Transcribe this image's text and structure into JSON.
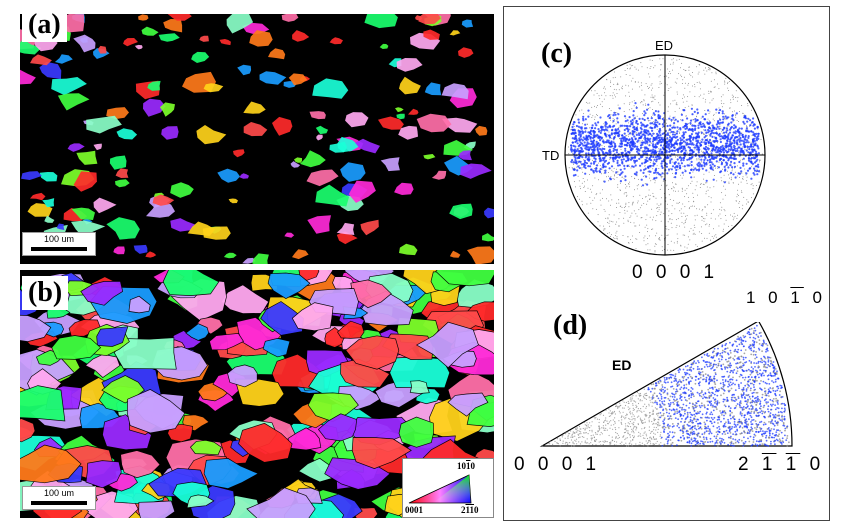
{
  "panels": {
    "a": {
      "letter": "(a)",
      "scalebar": "100 um"
    },
    "b": {
      "letter": "(b)",
      "scalebar": "100 um"
    },
    "c": {
      "letter": "(c)",
      "ed_label": "ED",
      "td_label": "TD",
      "index_bottom": "0 0 0 1"
    },
    "d": {
      "letter": "(d)",
      "ed_label": "ED"
    }
  },
  "right_index_top": {
    "base": "1 0 ",
    "bar": "1",
    "tail": " 0"
  },
  "ipf_d": {
    "left_corner": "0 0 0 1",
    "right_corner": {
      "lead": "2 ",
      "bar1": "1",
      "mid": " ",
      "bar2": "1",
      "tail": " 0"
    }
  },
  "ipf_key": {
    "top": {
      "base": "10",
      "bar": "1",
      "tail": "0"
    },
    "left": "0001",
    "right": {
      "lead": "2",
      "bar1": "1",
      "bar2": "1",
      "tail": "0"
    }
  },
  "colors": {
    "pole_points": "#1f3cff",
    "background_points": "#888888"
  }
}
